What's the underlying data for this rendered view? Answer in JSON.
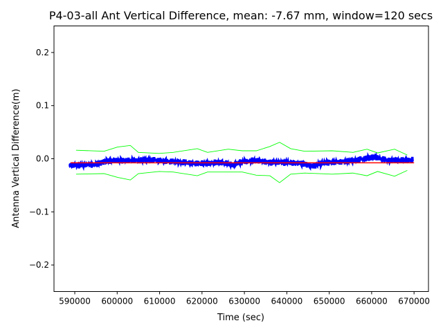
{
  "chart_data": {
    "type": "line",
    "title": "P4-03-all Ant Vertical Difference, mean: -7.67 mm, window=120 secs",
    "xlabel": "Time (sec)",
    "ylabel": "Antenna Vertical Difference(m)",
    "xlim": [
      585100,
      673400
    ],
    "ylim": [
      -0.25,
      0.25
    ],
    "xticks": [
      590000,
      600000,
      610000,
      620000,
      630000,
      640000,
      650000,
      660000,
      670000
    ],
    "xtick_labels": [
      "590000",
      "600000",
      "610000",
      "620000",
      "630000",
      "640000",
      "650000",
      "660000",
      "670000"
    ],
    "yticks": [
      -0.2,
      -0.1,
      0.0,
      0.1,
      0.2
    ],
    "ytick_labels": [
      "−0.2",
      "−0.1",
      "0.0",
      "0.1",
      "0.2"
    ],
    "grid": false,
    "series": [
      {
        "role": "difference",
        "color": "#0000ff",
        "x": [
          588700,
          592000,
          595200,
          596900,
          598500,
          601800,
          605000,
          608300,
          611600,
          614800,
          618100,
          621300,
          624600,
          627100,
          629500,
          632800,
          636000,
          639300,
          644200,
          645800,
          649100,
          652400,
          655600,
          658900,
          660500,
          663800,
          667100,
          669800
        ],
        "y": [
          -0.012,
          -0.012,
          -0.01,
          -0.005,
          -0.003,
          -0.003,
          -0.003,
          -0.002,
          -0.005,
          -0.006,
          -0.009,
          -0.009,
          -0.007,
          -0.012,
          -0.006,
          -0.003,
          -0.007,
          -0.007,
          -0.009,
          -0.014,
          -0.007,
          -0.006,
          -0.003,
          0.001,
          0.003,
          -0.003,
          -0.003,
          -0.003
        ]
      },
      {
        "role": "mean",
        "color": "#ff0000",
        "x": [
          589000,
          670000
        ],
        "y": [
          -0.00767,
          -0.00767
        ]
      },
      {
        "role": "upper-envelope",
        "color": "#00ff00",
        "x": [
          590300,
          596900,
          600100,
          603100,
          605000,
          609900,
          613200,
          618900,
          621300,
          626200,
          629500,
          632800,
          636000,
          638300,
          640900,
          644200,
          650700,
          655600,
          658900,
          661400,
          665400,
          668400
        ],
        "y": [
          0.016,
          0.014,
          0.022,
          0.025,
          0.012,
          0.01,
          0.012,
          0.019,
          0.012,
          0.018,
          0.015,
          0.015,
          0.023,
          0.031,
          0.019,
          0.014,
          0.015,
          0.012,
          0.018,
          0.011,
          0.018,
          0.007
        ]
      },
      {
        "role": "lower-envelope",
        "color": "#00ff00",
        "x": [
          590300,
          596900,
          600100,
          603100,
          605000,
          609900,
          613200,
          618900,
          621300,
          626200,
          629500,
          632800,
          636000,
          638300,
          640900,
          644200,
          650700,
          655600,
          658900,
          661400,
          665400,
          668400
        ],
        "y": [
          -0.029,
          -0.028,
          -0.035,
          -0.04,
          -0.028,
          -0.024,
          -0.025,
          -0.032,
          -0.025,
          -0.025,
          -0.025,
          -0.031,
          -0.032,
          -0.045,
          -0.029,
          -0.027,
          -0.029,
          -0.027,
          -0.032,
          -0.024,
          -0.033,
          -0.022
        ]
      }
    ]
  }
}
